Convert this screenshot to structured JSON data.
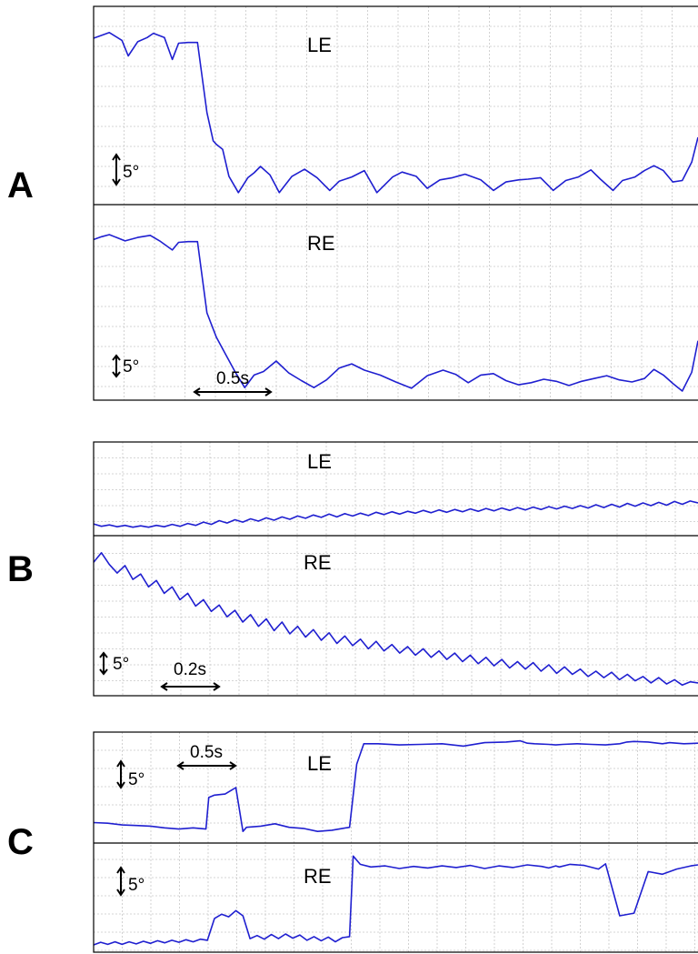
{
  "figure": {
    "panels": [
      {
        "letter": "A",
        "traces": [
          {
            "label": "LE",
            "vertical_scale": "5°"
          },
          {
            "label": "RE",
            "vertical_scale": "5°"
          }
        ],
        "time_scale": "0.5s"
      },
      {
        "letter": "B",
        "traces": [
          {
            "label": "LE",
            "vertical_scale": ""
          },
          {
            "label": "RE",
            "vertical_scale": "5°"
          }
        ],
        "time_scale": "0.2s"
      },
      {
        "letter": "C",
        "traces": [
          {
            "label": "LE",
            "vertical_scale": "5°"
          },
          {
            "label": "RE",
            "vertical_scale": "5°"
          }
        ],
        "time_scale": "0.5s"
      }
    ]
  },
  "colors": {
    "trace": "#1f1fd0",
    "grid": "#c8c8c8",
    "frame": "#000000"
  },
  "chart_data": [
    {
      "type": "line",
      "panel": "A",
      "trace": "LE",
      "x": [
        0,
        0.05,
        0.1,
        0.18,
        0.22,
        0.28,
        0.34,
        0.38,
        0.45,
        0.5,
        0.54,
        0.6,
        0.66,
        0.72,
        0.76,
        0.78,
        0.82,
        0.86,
        0.92,
        0.98,
        1.02,
        1.06,
        1.12,
        1.18,
        1.26,
        1.34,
        1.42,
        1.5,
        1.56,
        1.64,
        1.72,
        1.8,
        1.9,
        1.96,
        2.05,
        2.12,
        2.2,
        2.28,
        2.36,
        2.46,
        2.54,
        2.62,
        2.7,
        2.76,
        2.84,
        2.92,
        3.0,
        3.08,
        3.16,
        3.22,
        3.3,
        3.36,
        3.44,
        3.5,
        3.56,
        3.62,
        3.68,
        3.74,
        3.8,
        3.84
      ],
      "values": [
        20.5,
        20.9,
        21.3,
        20.2,
        18.0,
        20.0,
        20.6,
        21.2,
        20.6,
        17.5,
        19.8,
        19.9,
        19.9,
        10.0,
        6.0,
        5.5,
        4.8,
        1.0,
        -1.3,
        0.8,
        1.5,
        2.4,
        1.2,
        -1.3,
        1.0,
        2.0,
        0.8,
        -1.0,
        0.3,
        0.9,
        1.8,
        -1.3,
        0.9,
        1.6,
        1.0,
        -0.7,
        0.5,
        0.8,
        1.3,
        0.5,
        -1.0,
        0.2,
        0.5,
        0.6,
        0.8,
        -1.0,
        0.4,
        0.9,
        1.9,
        0.6,
        -1.0,
        0.4,
        0.9,
        1.8,
        2.5,
        1.8,
        0.2,
        0.4,
        3.0,
        6.5
      ]
    },
    {
      "type": "line",
      "panel": "A",
      "trace": "RE",
      "x": [
        0,
        0.05,
        0.1,
        0.2,
        0.28,
        0.36,
        0.42,
        0.5,
        0.54,
        0.6,
        0.66,
        0.72,
        0.78,
        0.84,
        0.9,
        0.96,
        1.02,
        1.08,
        1.16,
        1.24,
        1.32,
        1.4,
        1.48,
        1.56,
        1.64,
        1.72,
        1.82,
        1.92,
        2.02,
        2.12,
        2.22,
        2.3,
        2.38,
        2.46,
        2.54,
        2.62,
        2.7,
        2.78,
        2.86,
        2.94,
        3.02,
        3.1,
        3.18,
        3.26,
        3.34,
        3.42,
        3.5,
        3.56,
        3.62,
        3.68,
        3.74,
        3.8,
        3.84
      ],
      "values": [
        20.0,
        20.4,
        20.7,
        19.8,
        20.3,
        20.6,
        19.8,
        18.5,
        19.6,
        19.7,
        19.7,
        9.5,
        6.0,
        3.5,
        1.0,
        -1.2,
        0.6,
        1.1,
        2.6,
        0.9,
        -0.2,
        -1.2,
        -0.1,
        1.6,
        2.2,
        1.3,
        0.6,
        -0.4,
        -1.3,
        0.5,
        1.3,
        0.7,
        -0.5,
        0.6,
        0.8,
        -0.2,
        -0.8,
        -0.5,
        0.0,
        -0.3,
        -0.9,
        -0.3,
        0.1,
        0.5,
        -0.1,
        -0.4,
        0.1,
        1.4,
        0.6,
        -0.6,
        -1.7,
        1.0,
        5.5
      ]
    },
    {
      "type": "line",
      "panel": "B",
      "trace": "LE",
      "x": [
        0,
        0.02,
        0.04,
        0.06,
        0.08,
        0.1,
        0.12,
        0.14,
        0.16,
        0.18,
        0.2,
        0.22,
        0.24,
        0.26,
        0.28,
        0.3,
        0.32,
        0.34,
        0.36,
        0.38,
        0.4,
        0.42,
        0.44,
        0.46,
        0.48,
        0.5,
        0.52,
        0.54,
        0.56,
        0.58,
        0.6,
        0.62,
        0.64,
        0.66,
        0.68,
        0.7,
        0.72,
        0.74,
        0.76,
        0.78,
        0.8,
        0.82,
        0.84,
        0.86,
        0.88,
        0.9,
        0.92,
        0.94,
        0.96,
        0.98,
        1.0,
        1.02,
        1.04,
        1.06,
        1.08,
        1.1,
        1.12,
        1.14,
        1.16,
        1.18,
        1.2,
        1.22,
        1.24,
        1.26,
        1.28,
        1.3,
        1.32,
        1.34,
        1.36,
        1.38,
        1.4,
        1.42,
        1.44,
        1.46,
        1.48,
        1.5,
        1.52,
        1.54
      ],
      "values": [
        0.5,
        0.0,
        0.3,
        -0.1,
        0.2,
        -0.2,
        0.1,
        -0.2,
        0.2,
        -0.1,
        0.4,
        0.0,
        0.6,
        0.2,
        0.9,
        0.4,
        1.2,
        0.7,
        1.4,
        0.9,
        1.6,
        1.1,
        1.8,
        1.3,
        2.0,
        1.5,
        2.2,
        1.7,
        2.4,
        1.9,
        2.6,
        2.0,
        2.7,
        2.2,
        2.8,
        2.3,
        3.0,
        2.5,
        3.1,
        2.6,
        3.2,
        2.8,
        3.4,
        2.9,
        3.5,
        3.0,
        3.6,
        3.1,
        3.7,
        3.2,
        3.8,
        3.3,
        3.9,
        3.4,
        4.0,
        3.5,
        4.1,
        3.6,
        4.2,
        3.7,
        4.3,
        3.8,
        4.4,
        3.9,
        4.6,
        4.0,
        4.7,
        4.1,
        4.9,
        4.3,
        5.0,
        4.4,
        5.1,
        4.5,
        5.3,
        4.7,
        5.4,
        5.0
      ]
    },
    {
      "type": "line",
      "panel": "B",
      "trace": "RE",
      "x": [
        0,
        0.02,
        0.04,
        0.06,
        0.08,
        0.1,
        0.12,
        0.14,
        0.16,
        0.18,
        0.2,
        0.22,
        0.24,
        0.26,
        0.28,
        0.3,
        0.32,
        0.34,
        0.36,
        0.38,
        0.4,
        0.42,
        0.44,
        0.46,
        0.48,
        0.5,
        0.52,
        0.54,
        0.56,
        0.58,
        0.6,
        0.62,
        0.64,
        0.66,
        0.68,
        0.7,
        0.72,
        0.74,
        0.76,
        0.78,
        0.8,
        0.82,
        0.84,
        0.86,
        0.88,
        0.9,
        0.92,
        0.94,
        0.96,
        0.98,
        1.0,
        1.02,
        1.04,
        1.06,
        1.08,
        1.1,
        1.12,
        1.14,
        1.16,
        1.18,
        1.2,
        1.22,
        1.24,
        1.26,
        1.28,
        1.3,
        1.32,
        1.34,
        1.36,
        1.38,
        1.4,
        1.42,
        1.44,
        1.46,
        1.48,
        1.5,
        1.52,
        1.54
      ],
      "values": [
        9.5,
        10.4,
        9.3,
        8.5,
        9.2,
        7.9,
        8.4,
        7.2,
        7.8,
        6.6,
        7.2,
        6.0,
        6.6,
        5.4,
        6.0,
        4.9,
        5.5,
        4.4,
        5.0,
        3.9,
        4.6,
        3.5,
        4.2,
        3.1,
        3.9,
        2.8,
        3.5,
        2.5,
        3.2,
        2.2,
        2.9,
        1.9,
        2.6,
        1.7,
        2.3,
        1.4,
        2.1,
        1.2,
        1.8,
        1.0,
        1.6,
        0.8,
        1.4,
        0.6,
        1.2,
        0.4,
        1.0,
        0.2,
        0.8,
        0.0,
        0.6,
        -0.2,
        0.4,
        -0.4,
        0.2,
        -0.5,
        0.1,
        -0.7,
        -0.1,
        -0.9,
        -0.3,
        -1.0,
        -0.5,
        -1.2,
        -0.7,
        -1.3,
        -0.8,
        -1.5,
        -1.0,
        -1.6,
        -1.2,
        -1.8,
        -1.3,
        -1.9,
        -1.5,
        -2.0,
        -1.7,
        -1.8
      ]
    },
    {
      "type": "line",
      "panel": "C",
      "trace": "LE",
      "x": [
        0,
        0.2,
        0.4,
        0.6,
        0.8,
        1.0,
        1.2,
        1.4,
        1.58,
        1.62,
        1.7,
        1.85,
        2.0,
        2.1,
        2.15,
        2.35,
        2.55,
        2.75,
        2.95,
        3.15,
        3.35,
        3.5,
        3.6,
        3.7,
        3.8,
        4.0,
        4.3,
        4.6,
        4.9,
        5.2,
        5.5,
        5.8,
        6.0,
        6.1,
        6.2,
        6.4,
        6.5,
        6.6,
        6.8,
        7.0,
        7.2,
        7.4,
        7.5,
        7.6,
        7.8,
        8.0,
        8.1,
        8.3,
        8.5
      ],
      "values": [
        0.5,
        0.4,
        0.1,
        0.0,
        -0.1,
        -0.4,
        -0.6,
        -0.4,
        -0.6,
        4.8,
        5.2,
        5.4,
        6.5,
        -1.0,
        -0.3,
        -0.1,
        0.3,
        -0.3,
        -0.5,
        -1.0,
        -0.8,
        -0.5,
        -0.3,
        10.5,
        14.0,
        14.0,
        13.8,
        13.9,
        14.0,
        13.6,
        14.2,
        14.3,
        14.5,
        14.1,
        14.0,
        13.9,
        13.8,
        13.9,
        14.0,
        13.9,
        13.8,
        14.0,
        14.3,
        14.4,
        14.3,
        14.0,
        14.2,
        14.0,
        14.1
      ]
    },
    {
      "type": "line",
      "panel": "C",
      "trace": "RE",
      "x": [
        0,
        0.1,
        0.2,
        0.3,
        0.4,
        0.5,
        0.6,
        0.7,
        0.8,
        0.9,
        1.0,
        1.1,
        1.2,
        1.3,
        1.4,
        1.5,
        1.6,
        1.7,
        1.8,
        1.9,
        2.0,
        2.1,
        2.2,
        2.3,
        2.4,
        2.5,
        2.6,
        2.7,
        2.8,
        2.9,
        3.0,
        3.1,
        3.2,
        3.3,
        3.4,
        3.5,
        3.6,
        3.65,
        3.75,
        3.9,
        4.1,
        4.3,
        4.5,
        4.7,
        4.9,
        5.1,
        5.3,
        5.5,
        5.7,
        5.9,
        6.1,
        6.3,
        6.4,
        6.5,
        6.55,
        6.7,
        6.9,
        7.1,
        7.2,
        7.4,
        7.6,
        7.8,
        8.0,
        8.2,
        8.4,
        8.5
      ],
      "values": [
        0.4,
        0.9,
        0.5,
        1.0,
        0.5,
        1.0,
        0.6,
        1.1,
        0.7,
        1.2,
        0.8,
        1.3,
        0.9,
        1.4,
        1.0,
        1.5,
        1.3,
        5.5,
        6.3,
        5.8,
        7.0,
        6.0,
        1.6,
        2.2,
        1.5,
        2.4,
        1.6,
        2.5,
        1.7,
        2.3,
        1.3,
        2.0,
        1.2,
        1.9,
        1.0,
        1.8,
        2.0,
        17.5,
        15.9,
        15.4,
        15.6,
        15.1,
        15.5,
        15.2,
        15.6,
        15.3,
        15.7,
        15.1,
        15.6,
        15.3,
        15.8,
        15.5,
        15.2,
        15.6,
        15.4,
        15.9,
        15.7,
        15.0,
        16.0,
        6.0,
        6.5,
        14.5,
        14.0,
        15.0,
        15.6,
        15.8
      ]
    }
  ]
}
